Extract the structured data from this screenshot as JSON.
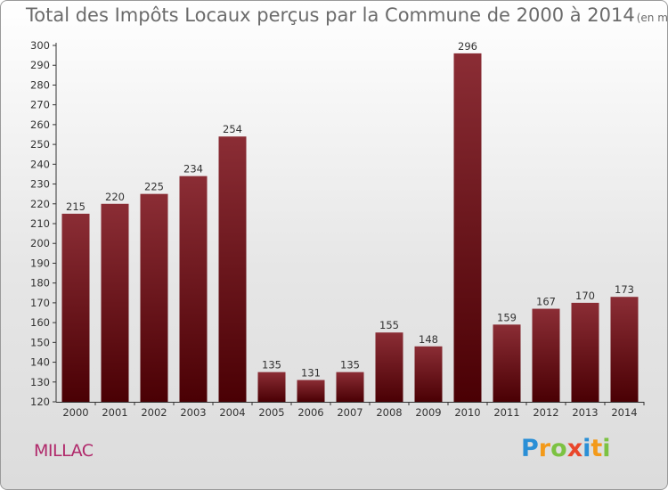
{
  "chart_data": {
    "type": "bar",
    "title": "Total des Impôts Locaux perçus par la Commune de 2000 à 2014",
    "unit_label": "(en milliers d'€)",
    "categories": [
      "2000",
      "2001",
      "2002",
      "2003",
      "2004",
      "2005",
      "2006",
      "2007",
      "2008",
      "2009",
      "2010",
      "2011",
      "2012",
      "2013",
      "2014"
    ],
    "values": [
      215,
      220,
      225,
      234,
      254,
      135,
      131,
      135,
      155,
      148,
      296,
      159,
      167,
      170,
      173
    ],
    "yticks": [
      120,
      130,
      140,
      150,
      160,
      170,
      180,
      190,
      200,
      210,
      220,
      230,
      240,
      250,
      260,
      270,
      280,
      290,
      300
    ],
    "ylim": [
      120,
      300
    ],
    "xlabel": "",
    "ylabel": "",
    "grid": false,
    "bar_color_top": "#8b2d35",
    "bar_color_bottom": "#4a0004"
  },
  "commune": "MILLAC",
  "logo": {
    "letters": [
      "P",
      "r",
      "o",
      "x",
      "i",
      "t",
      "i"
    ],
    "colors": [
      "#2a8fd6",
      "#f39a1a",
      "#7cc242",
      "#e9462b",
      "#2a8fd6",
      "#f39a1a",
      "#7cc242"
    ]
  }
}
